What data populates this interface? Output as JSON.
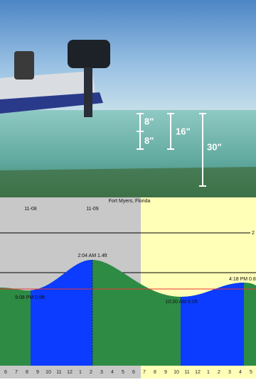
{
  "illustration": {
    "labels": [
      "8\"",
      "8\"",
      "16\"",
      "30\""
    ]
  },
  "tide_chart": {
    "title": "Fort Myers, Florida",
    "dates": [
      "11-08",
      "11-09"
    ],
    "annotations": [
      "2:04 AM 1.4ft",
      "9:08 PM 0.6ft",
      "10:20 AM 0.1ft",
      "4:18 PM 0.8"
    ],
    "axis_label": "2",
    "hours": [
      "6",
      "7",
      "8",
      "9",
      "10",
      "11",
      "12",
      "1",
      "2",
      "3",
      "4",
      "5",
      "6",
      "7",
      "8",
      "9",
      "10",
      "11",
      "12",
      "1",
      "2",
      "3",
      "4",
      "5"
    ]
  }
}
